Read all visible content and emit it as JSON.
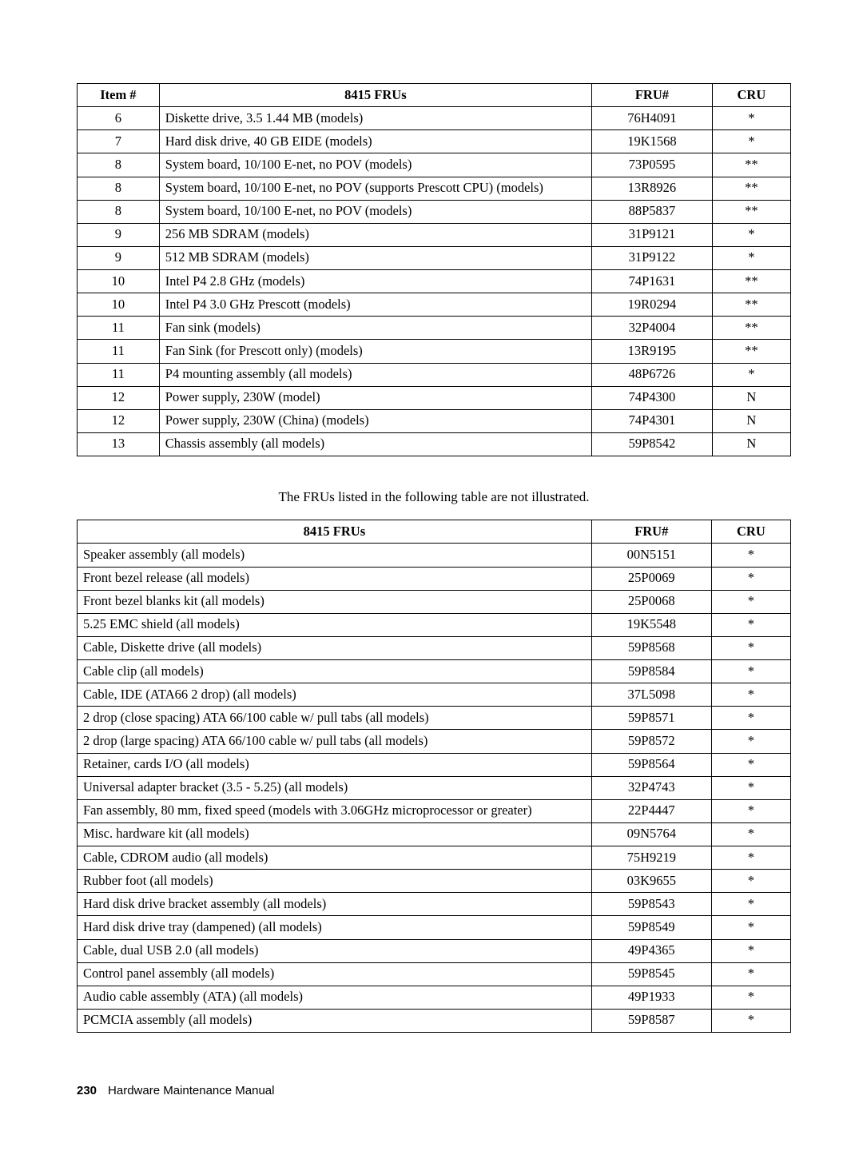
{
  "table1": {
    "headers": {
      "item": "Item #",
      "desc": "8415 FRUs",
      "fru": "FRU#",
      "cru": "CRU"
    },
    "rows": [
      {
        "item": "6",
        "desc": "Diskette drive, 3.5 1.44 MB (models)",
        "fru": "76H4091",
        "cru": "*"
      },
      {
        "item": "7",
        "desc": "Hard disk drive, 40 GB EIDE (models)",
        "fru": "19K1568",
        "cru": "*"
      },
      {
        "item": "8",
        "desc": "System board, 10/100 E-net, no POV (models)",
        "fru": "73P0595",
        "cru": "**"
      },
      {
        "item": "8",
        "desc": "System board, 10/100 E-net, no POV (supports Prescott CPU) (models)",
        "fru": "13R8926",
        "cru": "**"
      },
      {
        "item": "8",
        "desc": "System board, 10/100 E-net, no POV (models)",
        "fru": "88P5837",
        "cru": "**"
      },
      {
        "item": "9",
        "desc": "256 MB SDRAM (models)",
        "fru": "31P9121",
        "cru": "*"
      },
      {
        "item": "9",
        "desc": "512 MB SDRAM (models)",
        "fru": "31P9122",
        "cru": "*"
      },
      {
        "item": "10",
        "desc": "Intel P4 2.8 GHz (models)",
        "fru": "74P1631",
        "cru": "**"
      },
      {
        "item": "10",
        "desc": "Intel P4 3.0 GHz Prescott (models)",
        "fru": "19R0294",
        "cru": "**"
      },
      {
        "item": "11",
        "desc": "Fan sink (models)",
        "fru": "32P4004",
        "cru": "**"
      },
      {
        "item": "11",
        "desc": "Fan Sink (for Prescott only) (models)",
        "fru": "13R9195",
        "cru": "**"
      },
      {
        "item": "11",
        "desc": "P4 mounting assembly (all models)",
        "fru": "48P6726",
        "cru": "*"
      },
      {
        "item": "12",
        "desc": "Power supply, 230W (model)",
        "fru": "74P4300",
        "cru": "N"
      },
      {
        "item": "12",
        "desc": "Power supply, 230W (China) (models)",
        "fru": "74P4301",
        "cru": "N"
      },
      {
        "item": "13",
        "desc": "Chassis assembly (all models)",
        "fru": "59P8542",
        "cru": "N"
      }
    ]
  },
  "caption": "The FRUs listed in the following table are not illustrated.",
  "table2": {
    "headers": {
      "desc": "8415 FRUs",
      "fru": "FRU#",
      "cru": "CRU"
    },
    "rows": [
      {
        "desc": "Speaker assembly (all models)",
        "fru": "00N5151",
        "cru": "*"
      },
      {
        "desc": "Front bezel release (all models)",
        "fru": "25P0069",
        "cru": "*"
      },
      {
        "desc": "Front bezel blanks kit (all models)",
        "fru": "25P0068",
        "cru": "*"
      },
      {
        "desc": "5.25 EMC shield (all models)",
        "fru": "19K5548",
        "cru": "*"
      },
      {
        "desc": "Cable, Diskette drive (all models)",
        "fru": "59P8568",
        "cru": "*"
      },
      {
        "desc": "Cable clip (all models)",
        "fru": "59P8584",
        "cru": "*"
      },
      {
        "desc": "Cable, IDE (ATA66 2 drop) (all models)",
        "fru": "37L5098",
        "cru": "*"
      },
      {
        "desc": "2 drop (close spacing) ATA 66/100 cable w/ pull tabs (all models)",
        "fru": "59P8571",
        "cru": "*"
      },
      {
        "desc": "2 drop (large spacing) ATA 66/100 cable w/ pull tabs (all models)",
        "fru": "59P8572",
        "cru": "*"
      },
      {
        "desc": "Retainer, cards I/O (all models)",
        "fru": "59P8564",
        "cru": "*"
      },
      {
        "desc": "Universal adapter bracket (3.5 - 5.25) (all models)",
        "fru": "32P4743",
        "cru": "*"
      },
      {
        "desc": "Fan assembly, 80 mm, fixed speed (models with 3.06GHz microprocessor or greater)",
        "fru": "22P4447",
        "cru": "*"
      },
      {
        "desc": "Misc. hardware kit (all models)",
        "fru": "09N5764",
        "cru": "*"
      },
      {
        "desc": "Cable, CDROM audio (all models)",
        "fru": "75H9219",
        "cru": "*"
      },
      {
        "desc": "Rubber foot (all models)",
        "fru": "03K9655",
        "cru": "*"
      },
      {
        "desc": "Hard disk drive bracket assembly (all models)",
        "fru": "59P8543",
        "cru": "*"
      },
      {
        "desc": "Hard disk drive tray (dampened) (all models)",
        "fru": "59P8549",
        "cru": "*"
      },
      {
        "desc": "Cable, dual USB 2.0 (all models)",
        "fru": "49P4365",
        "cru": "*"
      },
      {
        "desc": "Control panel assembly (all models)",
        "fru": "59P8545",
        "cru": "*"
      },
      {
        "desc": "Audio cable assembly (ATA) (all models)",
        "fru": "49P1933",
        "cru": "*"
      },
      {
        "desc": "PCMCIA assembly (all models)",
        "fru": "59P8587",
        "cru": "*"
      }
    ]
  },
  "footer": {
    "page": "230",
    "title": "Hardware Maintenance Manual"
  }
}
